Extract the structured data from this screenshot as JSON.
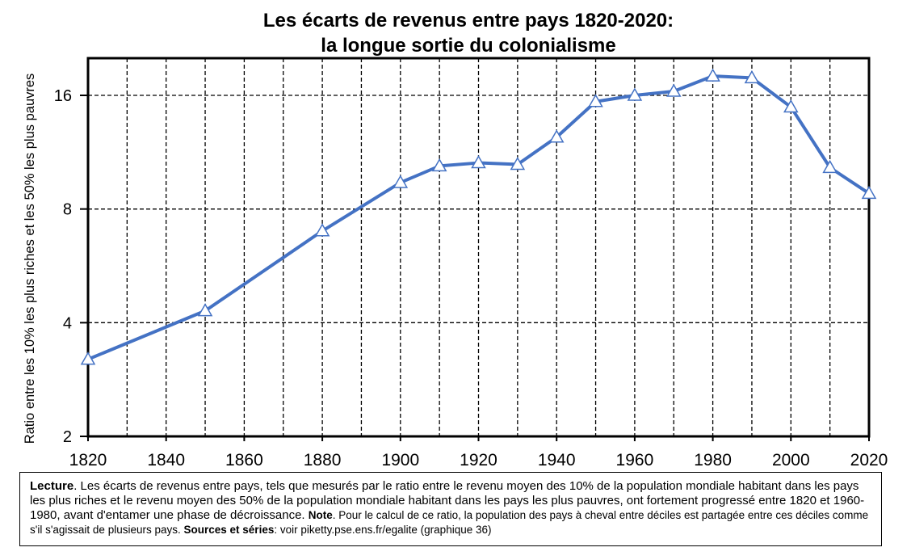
{
  "chart_data": {
    "type": "line",
    "title": "Les écarts de revenus entre pays 1820-2020:",
    "subtitle": "la longue sortie du colonialisme",
    "xlabel": "",
    "ylabel": "Ratio entre les 10% les plus riches et les 50% les plus pauvres",
    "y_scale": "log2",
    "xlim": [
      1820,
      2020
    ],
    "ylim": [
      2,
      20
    ],
    "x_ticks": [
      1820,
      1840,
      1860,
      1880,
      1900,
      1920,
      1940,
      1960,
      1980,
      2000,
      2020
    ],
    "y_ticks": [
      2,
      4,
      8,
      16
    ],
    "grid": "vertical dashed every 10 years, horizontal dashed at y ticks",
    "legend": "none",
    "series_color": "#4472C4",
    "marker": "triangle",
    "x": [
      1820,
      1850,
      1880,
      1900,
      1910,
      1920,
      1930,
      1940,
      1950,
      1960,
      1970,
      1980,
      1990,
      2000,
      2010,
      2020
    ],
    "y": [
      3.2,
      4.3,
      7.0,
      9.4,
      10.4,
      10.6,
      10.5,
      12.4,
      15.4,
      16.0,
      16.4,
      18.0,
      17.8,
      14.9,
      10.3,
      8.8
    ]
  },
  "note": {
    "lecture_label": "Lecture",
    "lecture_text": ". Les écarts de revenus entre pays, tels que mesurés par le ratio entre le revenu moyen des 10% de la population mondiale habitant dans les pays les plus riches et le revenu moyen des 50% de la population mondiale habitant dans les pays les plus pauvres, ont fortement progressé entre 1820 et 1960-1980, avant d'entamer une phase de décroissance.",
    "note_label": "Note",
    "note_text": ". Pour le calcul de ce ratio, la population des pays à cheval entre déciles est partagée entre ces déciles comme s'il s'agissait de plusieurs pays.",
    "sources_label": "Sources et séries",
    "sources_text": ": voir piketty.pse.ens.fr/egalite (graphique 36)"
  }
}
